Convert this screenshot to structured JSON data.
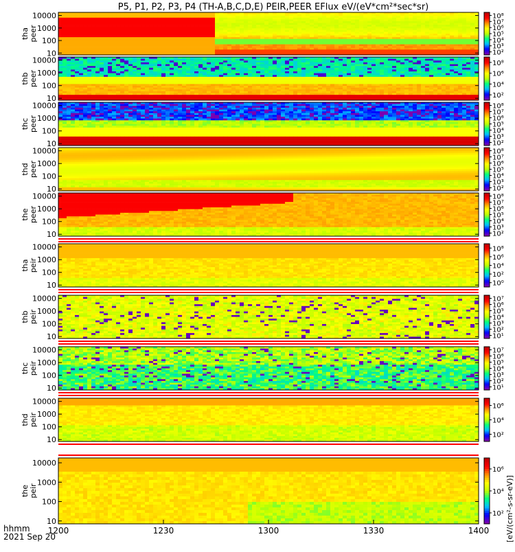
{
  "title": "P5, P1, P2, P3, P4 (TH-A,B,C,D,E) PEIR,PEER EFlux eV/(eV*cm²*sec*sr)",
  "colorbar_unit_label": "[eV/(cm²-s-sr-eV)]",
  "colors": {
    "background": "#ffffff",
    "gap_red": "#ff0000",
    "scale": [
      "#7a00b0",
      "#0000ff",
      "#00c0ff",
      "#00ff80",
      "#c0ff00",
      "#ffff00",
      "#ff9000",
      "#ff0000",
      "#c00000"
    ]
  },
  "time_axis": {
    "label_line1": "hhmm",
    "label_line2": "2021 Sep 20",
    "ticks": [
      "1200",
      "1230",
      "1300",
      "1330",
      "1400"
    ]
  },
  "chart_data": [
    {
      "type": "heatmap",
      "probe": "tha",
      "species": "peer",
      "ylabel": [
        "tha",
        "peer"
      ],
      "yticks": [
        "10000",
        "1000",
        "100",
        "10"
      ],
      "cbar_ticks": [
        "10⁸",
        "10⁷",
        "10⁶",
        "10⁵",
        "10⁴",
        "10³",
        "10²"
      ],
      "pattern": "hot-decay"
    },
    {
      "type": "heatmap",
      "probe": "thb",
      "species": "peer",
      "ylabel": [
        "thb",
        "peer"
      ],
      "yticks": [
        "10000",
        "1000",
        "100",
        "10"
      ],
      "cbar_ticks": [
        "10⁸",
        "10⁶",
        "10⁴",
        "10²"
      ],
      "pattern": "noise-top"
    },
    {
      "type": "heatmap",
      "probe": "thc",
      "species": "peer",
      "ylabel": [
        "thc",
        "peer"
      ],
      "yticks": [
        "10000",
        "1000",
        "100",
        "10"
      ],
      "cbar_ticks": [
        "10⁸",
        "10⁷",
        "10⁶",
        "10⁵",
        "10⁴",
        "10³",
        "10²"
      ],
      "pattern": "blue-noise"
    },
    {
      "type": "heatmap",
      "probe": "thd",
      "species": "peer",
      "ylabel": [
        "thd",
        "peer"
      ],
      "yticks": [
        "10000",
        "1000",
        "100",
        "10"
      ],
      "cbar_ticks": [
        "10⁸",
        "10⁷",
        "10⁶",
        "10⁵",
        "10⁴",
        "10³",
        "10²"
      ],
      "pattern": "warm-bands"
    },
    {
      "type": "heatmap",
      "probe": "the",
      "species": "peer",
      "ylabel": [
        "the",
        "peer"
      ],
      "yticks": [
        "10000",
        "1000",
        "100",
        "10"
      ],
      "cbar_ticks": [
        "10⁸",
        "10⁷",
        "10⁶",
        "10⁵",
        "10⁴",
        "10³",
        "10²"
      ],
      "pattern": "hot-decay-2"
    },
    {
      "type": "heatmap",
      "probe": "tha",
      "species": "peir",
      "ylabel": [
        "tha",
        "peir"
      ],
      "yticks": [
        "10000",
        "1000",
        "100",
        "10"
      ],
      "cbar_ticks": [
        "10⁸",
        "10⁶",
        "10⁴",
        "10²",
        "10⁰"
      ],
      "pattern": "ion-warm",
      "gap_top": true
    },
    {
      "type": "heatmap",
      "probe": "thb",
      "species": "peir",
      "ylabel": [
        "thb",
        "peir"
      ],
      "yticks": [
        "10000",
        "1000",
        "100",
        "10"
      ],
      "cbar_ticks": [
        "10⁷",
        "10⁶",
        "10⁵",
        "10⁴",
        "10³",
        "10²",
        "10¹"
      ],
      "pattern": "ion-noise",
      "gap_top": true
    },
    {
      "type": "heatmap",
      "probe": "thc",
      "species": "peir",
      "ylabel": [
        "thc",
        "peir"
      ],
      "yticks": [
        "10000",
        "1000",
        "100",
        "10"
      ],
      "cbar_ticks": [
        "10⁷",
        "10⁶",
        "10⁵",
        "10⁴",
        "10³",
        "10²",
        "10¹"
      ],
      "pattern": "ion-cool",
      "gap_top": true
    },
    {
      "type": "heatmap",
      "probe": "thd",
      "species": "peir",
      "ylabel": [
        "thd",
        "peir"
      ],
      "yticks": [
        "10000",
        "1000",
        "100",
        "10"
      ],
      "cbar_ticks": [
        "10⁶",
        "10⁴",
        "10²"
      ],
      "pattern": "ion-warm-2",
      "gap_top": true
    },
    {
      "type": "heatmap",
      "probe": "the",
      "species": "peir",
      "ylabel": [
        "the",
        "peir"
      ],
      "yticks": [
        "10000",
        "1000",
        "100",
        "10"
      ],
      "cbar_ticks": [
        "10⁶",
        "10⁴",
        "10²"
      ],
      "pattern": "ion-warm-3",
      "gap_top": true
    }
  ]
}
